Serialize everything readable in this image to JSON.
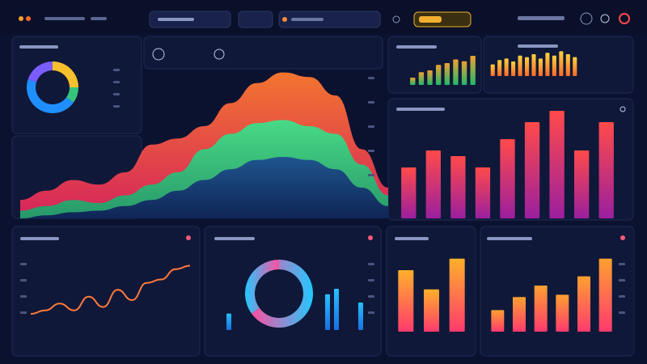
{
  "chart_data": [
    {
      "type": "pie",
      "values": [
        25,
        10,
        45,
        20
      ],
      "colors": [
        "#f5c02c",
        "#35c47a",
        "#1f8fff",
        "#7a5cff"
      ]
    },
    {
      "type": "area",
      "categories": [
        null,
        null,
        null,
        null,
        null,
        null,
        null,
        null,
        null,
        null,
        null,
        null,
        null,
        null,
        null
      ],
      "ylim": [
        0,
        100
      ],
      "series": [
        {
          "colors": [
            "#e0245e",
            "#ff7a2f"
          ],
          "values": [
            12,
            18,
            25,
            22,
            30,
            48,
            52,
            60,
            75,
            88,
            95,
            92,
            80,
            45,
            20
          ]
        },
        {
          "colors": [
            "#1e9e6a",
            "#3fe08a"
          ],
          "values": [
            5,
            8,
            12,
            10,
            15,
            22,
            30,
            45,
            55,
            62,
            64,
            60,
            55,
            35,
            15
          ]
        },
        {
          "colors": [
            "#0e1f55",
            "#1d4f8f"
          ],
          "values": [
            0,
            2,
            4,
            5,
            8,
            12,
            18,
            25,
            32,
            38,
            40,
            38,
            32,
            20,
            8
          ]
        }
      ]
    },
    {
      "type": "bar",
      "ylim": [
        0,
        100
      ],
      "values": [
        20,
        35,
        40,
        55,
        60,
        70,
        65,
        80
      ],
      "colors": [
        "#1fb86a",
        "#f0a030"
      ]
    },
    {
      "type": "bar",
      "ylim": [
        0,
        100
      ],
      "values": [
        40,
        55,
        60,
        50,
        70,
        65,
        75,
        60,
        80,
        70,
        85,
        75,
        65
      ],
      "colors": [
        "#ff6a2a",
        "#ffd23a"
      ]
    },
    {
      "type": "bar",
      "ylim": [
        0,
        100
      ],
      "values": [
        45,
        60,
        55,
        45,
        70,
        85,
        95,
        60,
        85
      ],
      "colors": [
        "#9b1f9e",
        "#ff4a4a"
      ]
    },
    {
      "type": "line",
      "ylim": [
        0,
        100
      ],
      "values": [
        20,
        25,
        35,
        25,
        45,
        30,
        55,
        40,
        65,
        70,
        85,
        90
      ],
      "color": "#ff7a3d"
    },
    {
      "type": "pie",
      "values": [
        65,
        35
      ],
      "colors": [
        "#ff4fa0",
        "#22c8ff"
      ]
    },
    {
      "type": "bar",
      "ylim": [
        0,
        100
      ],
      "values": [
        30,
        65,
        75,
        50
      ],
      "colors": [
        "#1a6fe0",
        "#27c0ff"
      ]
    },
    {
      "type": "bar",
      "ylim": [
        0,
        100
      ],
      "values": [
        80,
        55,
        95
      ],
      "colors": [
        "#ff3a6e",
        "#ffb02a"
      ]
    },
    {
      "type": "bar",
      "ylim": [
        0,
        100
      ],
      "values": [
        28,
        45,
        60,
        48,
        72,
        95
      ],
      "colors": [
        "#ff3a6e",
        "#ffa030"
      ]
    }
  ]
}
